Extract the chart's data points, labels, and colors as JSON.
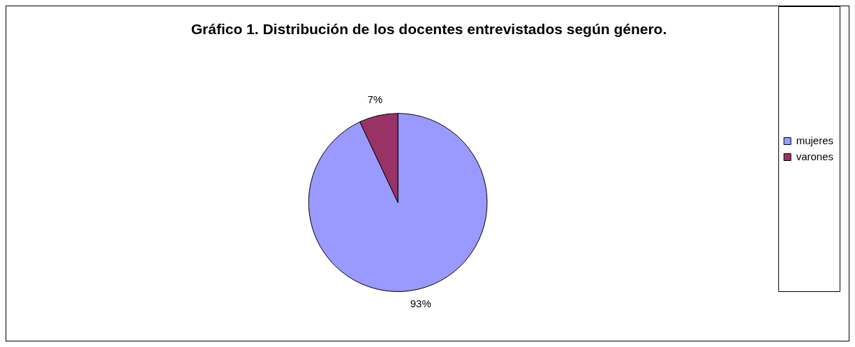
{
  "chart_data": {
    "type": "pie",
    "title": "Gráfico 1. Distribución de los docentes entrevistados según género.",
    "categories": [
      "mujeres",
      "varones"
    ],
    "values": [
      93,
      7
    ],
    "colors": [
      "#9999ff",
      "#993366"
    ],
    "value_labels": [
      "93%",
      "7%"
    ],
    "legend": "right"
  }
}
